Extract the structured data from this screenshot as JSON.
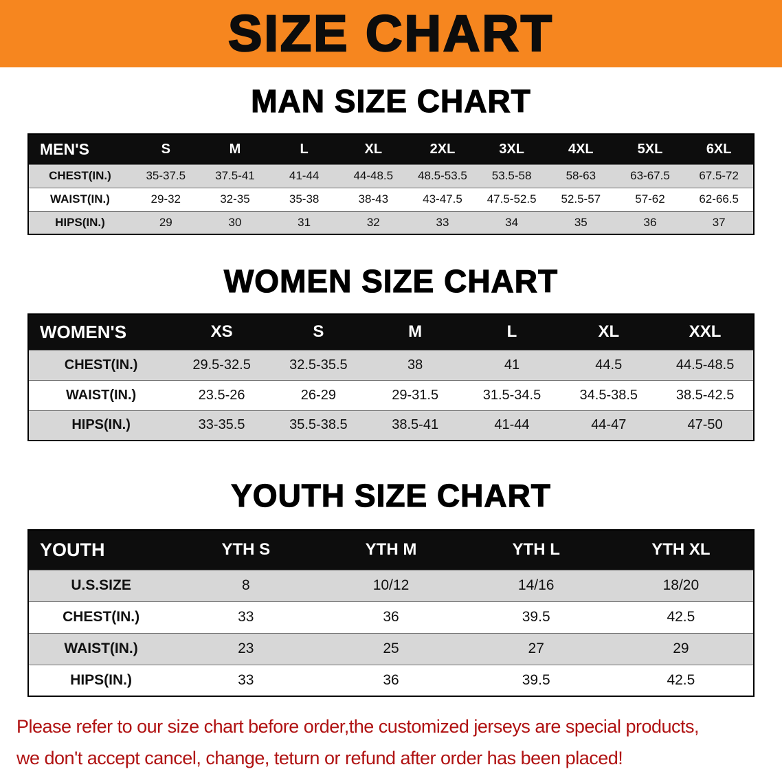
{
  "banner": {
    "title": "SIZE CHART"
  },
  "colors": {
    "banner_orange": "#f6861f",
    "header_black": "#0d0d0d",
    "stripe_gray": "#d7d7d7",
    "footer_red": "#b01212"
  },
  "sections": [
    {
      "name": "mens",
      "heading": "MAN SIZE CHART",
      "header": [
        "MEN'S",
        "S",
        "M",
        "L",
        "XL",
        "2XL",
        "3XL",
        "4XL",
        "5XL",
        "6XL"
      ],
      "rows": [
        [
          "CHEST(IN.)",
          "35-37.5",
          "37.5-41",
          "41-44",
          "44-48.5",
          "48.5-53.5",
          "53.5-58",
          "58-63",
          "63-67.5",
          "67.5-72"
        ],
        [
          "WAIST(IN.)",
          "29-32",
          "32-35",
          "35-38",
          "38-43",
          "43-47.5",
          "47.5-52.5",
          "52.5-57",
          "57-62",
          "62-66.5"
        ],
        [
          "HIPS(IN.)",
          "29",
          "30",
          "31",
          "32",
          "33",
          "34",
          "35",
          "36",
          "37"
        ]
      ]
    },
    {
      "name": "womens",
      "heading": "WOMEN SIZE CHART",
      "header": [
        "WOMEN'S",
        "XS",
        "S",
        "M",
        "L",
        "XL",
        "XXL"
      ],
      "rows": [
        [
          "CHEST(IN.)",
          "29.5-32.5",
          "32.5-35.5",
          "38",
          "41",
          "44.5",
          "44.5-48.5"
        ],
        [
          "WAIST(IN.)",
          "23.5-26",
          "26-29",
          "29-31.5",
          "31.5-34.5",
          "34.5-38.5",
          "38.5-42.5"
        ],
        [
          "HIPS(IN.)",
          "33-35.5",
          "35.5-38.5",
          "38.5-41",
          "41-44",
          "44-47",
          "47-50"
        ]
      ]
    },
    {
      "name": "youth",
      "heading": "YOUTH SIZE CHART",
      "header": [
        "YOUTH",
        "YTH S",
        "YTH M",
        "YTH L",
        "YTH XL"
      ],
      "rows": [
        [
          "U.S.SIZE",
          "8",
          "10/12",
          "14/16",
          "18/20"
        ],
        [
          "CHEST(IN.)",
          "33",
          "36",
          "39.5",
          "42.5"
        ],
        [
          "WAIST(IN.)",
          "23",
          "25",
          "27",
          "29"
        ],
        [
          "HIPS(IN.)",
          "33",
          "36",
          "39.5",
          "42.5"
        ]
      ]
    }
  ],
  "footer": {
    "lines": [
      "Please refer to our size chart before order,the customized jerseys are special products,",
      "we don't accept cancel, change, teturn or refund after order has been placed!"
    ]
  }
}
